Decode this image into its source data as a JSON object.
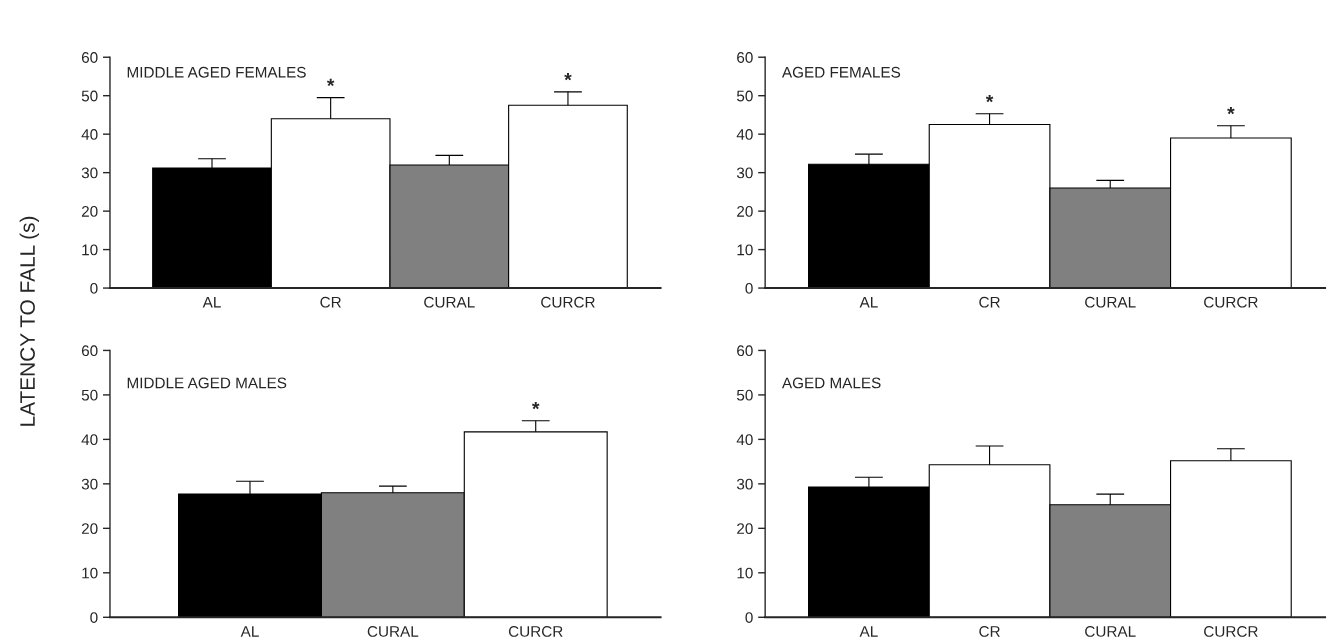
{
  "chart_data": [
    {
      "type": "bar",
      "title": "MIDDLE AGED FEMALES",
      "ylabel": "LATENCY TO FALL (s)",
      "categories": [
        "AL",
        "CR",
        "CURAL",
        "CURCR"
      ],
      "values": [
        31.2,
        44,
        32,
        47.5
      ],
      "errors": [
        2.4,
        5.5,
        2.5,
        3.5
      ],
      "colors": [
        "#000000",
        "#ffffff",
        "#808080",
        "#ffffff"
      ],
      "ylim": [
        0,
        60
      ],
      "yticks": [
        0,
        10,
        20,
        30,
        40,
        50,
        60
      ],
      "grid": false,
      "legend": false,
      "annotations": [
        {
          "text": "*",
          "x": "CR",
          "y": 49.5
        },
        {
          "text": "*",
          "x": "CURCR",
          "y": 51
        }
      ]
    },
    {
      "type": "bar",
      "title": "AGED FEMALES",
      "categories": [
        "AL",
        "CR",
        "CURAL",
        "CURCR"
      ],
      "values": [
        32.2,
        42.5,
        26,
        39
      ],
      "errors": [
        2.6,
        2.8,
        2,
        3.2
      ],
      "colors": [
        "#000000",
        "#ffffff",
        "#808080",
        "#ffffff"
      ],
      "ylim": [
        0,
        60
      ],
      "yticks": [
        0,
        10,
        20,
        30,
        40,
        50,
        60
      ],
      "grid": false,
      "legend": false,
      "annotations": [
        {
          "text": "*",
          "x": "CR",
          "y": 45.3
        },
        {
          "text": "*",
          "x": "CURCR",
          "y": 42.2
        }
      ]
    },
    {
      "type": "bar",
      "title": "MIDDLE AGED MALES",
      "categories": [
        "AL",
        "CURAL",
        "CURCR"
      ],
      "values": [
        27.7,
        28,
        41.7
      ],
      "errors": [
        2.9,
        1.5,
        2.5
      ],
      "colors": [
        "#000000",
        "#808080",
        "#ffffff"
      ],
      "ylim": [
        0,
        60
      ],
      "yticks": [
        0,
        10,
        20,
        30,
        40,
        50,
        60
      ],
      "grid": false,
      "legend": false,
      "annotations": [
        {
          "text": "*",
          "x": "CURCR",
          "y": 44.2
        }
      ]
    },
    {
      "type": "bar",
      "title": "AGED MALES",
      "categories": [
        "AL",
        "CR",
        "CURAL",
        "CURCR"
      ],
      "values": [
        29.3,
        34.3,
        25.3,
        35.2
      ],
      "errors": [
        2.2,
        4.2,
        2.4,
        2.7
      ],
      "colors": [
        "#000000",
        "#ffffff",
        "#808080",
        "#ffffff"
      ],
      "ylim": [
        0,
        60
      ],
      "yticks": [
        0,
        10,
        20,
        30,
        40,
        50,
        60
      ],
      "grid": false,
      "legend": false
    }
  ]
}
